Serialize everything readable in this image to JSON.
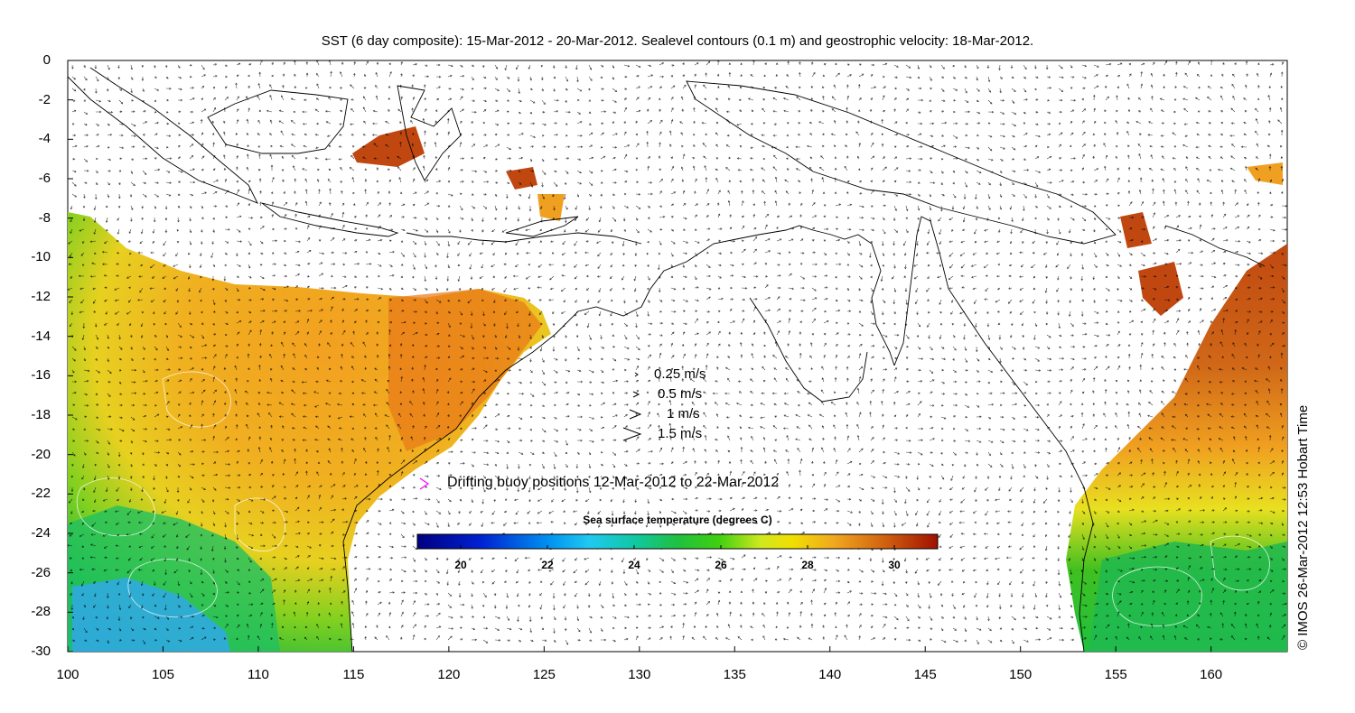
{
  "title": "SST (6 day composite): 15-Mar-2012 - 20-Mar-2012. Sealevel contours (0.1 m) and geostrophic velocity: 18-Mar-2012.",
  "credit": "© IMOS 26-Mar-2012 12:53 Hobart Time",
  "axes": {
    "x_ticks": [
      "100",
      "105",
      "110",
      "115",
      "120",
      "125",
      "130",
      "135",
      "140",
      "145",
      "150",
      "155",
      "160"
    ],
    "y_ticks": [
      "0",
      "-2",
      "-4",
      "-6",
      "-8",
      "-10",
      "-12",
      "-14",
      "-16",
      "-18",
      "-20",
      "-22",
      "-24",
      "-26",
      "-28",
      "-30"
    ],
    "xlim": [
      100,
      164
    ],
    "ylim": [
      -30,
      0
    ]
  },
  "velocity_legend": [
    {
      "label": "0.25 m/s",
      "speed": 0.25
    },
    {
      "label": "0.5 m/s",
      "speed": 0.5
    },
    {
      "label": "1 m/s",
      "speed": 1
    },
    {
      "label": "1.5 m/s",
      "speed": 1.5
    }
  ],
  "buoy_legend": {
    "label": "Drifting buoy positions 12-Mar-2012 to 22-Mar-2012",
    "color": "#ff00ff"
  },
  "colorbar": {
    "title": "Sea surface temperature (degrees C)",
    "range": [
      19,
      31
    ],
    "ticks": [
      "20",
      "22",
      "24",
      "26",
      "28",
      "30"
    ]
  },
  "colors": {
    "land": "#ffffff",
    "coast": "#000000",
    "arrows": "#000000",
    "contours": "#ffffff"
  }
}
